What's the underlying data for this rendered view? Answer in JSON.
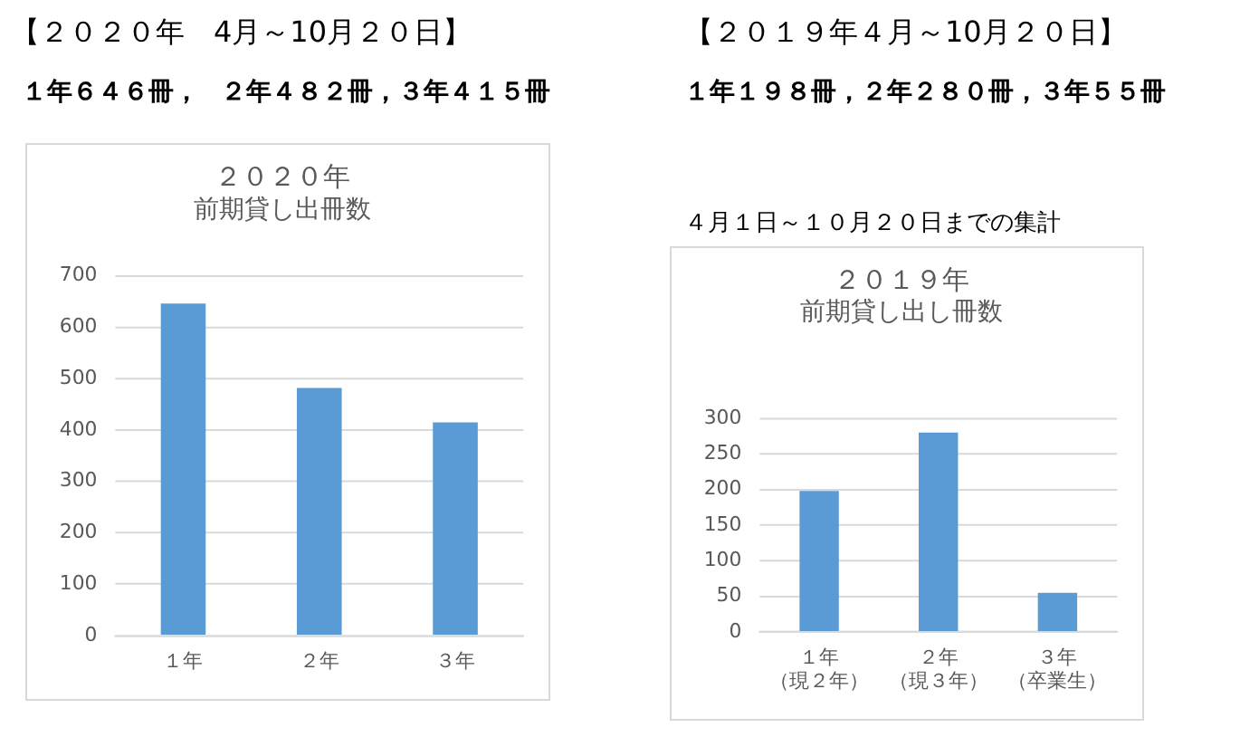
{
  "chart_data": [
    {
      "type": "bar",
      "title": "２０２０年",
      "subtitle": "前期貸し出冊数",
      "annotations": [
        "【２０２０年　4月～10月２０日】",
        "１年６４６冊，",
        "２年４８２冊，３年４１５冊"
      ],
      "categories": [
        "１年",
        "２年",
        "３年"
      ],
      "values": [
        646,
        482,
        415
      ],
      "color": "#5b9bd5",
      "ylim": [
        0,
        700
      ],
      "yticks": [
        0,
        100,
        200,
        300,
        400,
        500,
        600,
        700
      ],
      "grid": "y",
      "legend": false
    },
    {
      "type": "bar",
      "title": "２０１９年",
      "subtitle": "前期貸し出し冊数",
      "annotations": [
        "【２０１９年４月～10月２０日】",
        "１年１９８冊，２年２８０冊，３年５５冊",
        "４月１日～１０月２０日までの集計"
      ],
      "categories": [
        "１年（現２年）",
        "２年（現３年）",
        "３年（卒業生）"
      ],
      "values": [
        198,
        280,
        55
      ],
      "color": "#5b9bd5",
      "ylim": [
        0,
        300
      ],
      "yticks": [
        0,
        50,
        100,
        150,
        200,
        250,
        300
      ],
      "grid": "y",
      "legend": false
    }
  ]
}
